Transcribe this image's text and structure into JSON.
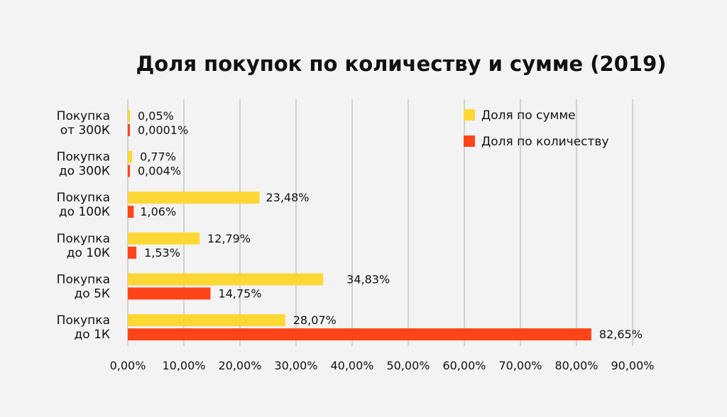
{
  "chart_data": {
    "type": "bar",
    "orientation": "horizontal",
    "title": "Доля покупок по количеству и сумме (2019)",
    "categories": [
      [
        "Покупка",
        "от 300К"
      ],
      [
        "Покупка",
        "до 300К"
      ],
      [
        "Покупка",
        "до 100К"
      ],
      [
        "Покупка",
        "до 10К"
      ],
      [
        "Покупка",
        "до 5К"
      ],
      [
        "Покупка",
        "до 1К"
      ]
    ],
    "series": [
      {
        "name": "Доля по сумме",
        "color": "#fdd835",
        "values": [
          0.05,
          0.77,
          23.48,
          12.79,
          34.83,
          28.07
        ],
        "labels": [
          "0,05%",
          "0,77%",
          "23,48%",
          "12,79%",
          "34,83%",
          "28,07%"
        ]
      },
      {
        "name": "Доля по количеству",
        "color": "#ff4419",
        "values": [
          0.0001,
          0.004,
          1.06,
          1.53,
          14.75,
          82.65
        ],
        "labels": [
          "0,0001%",
          "0,004%",
          "1,06%",
          "1,53%",
          "14,75%",
          "82,65%"
        ]
      }
    ],
    "xlim": [
      0,
      90
    ],
    "x_ticks": [
      "0,00%",
      "10,00%",
      "20,00%",
      "30,00%",
      "40,00%",
      "50,00%",
      "60,00%",
      "70,00%",
      "80,00%",
      "90,00%"
    ],
    "grid": "vertical",
    "legend_position": "top-right"
  }
}
